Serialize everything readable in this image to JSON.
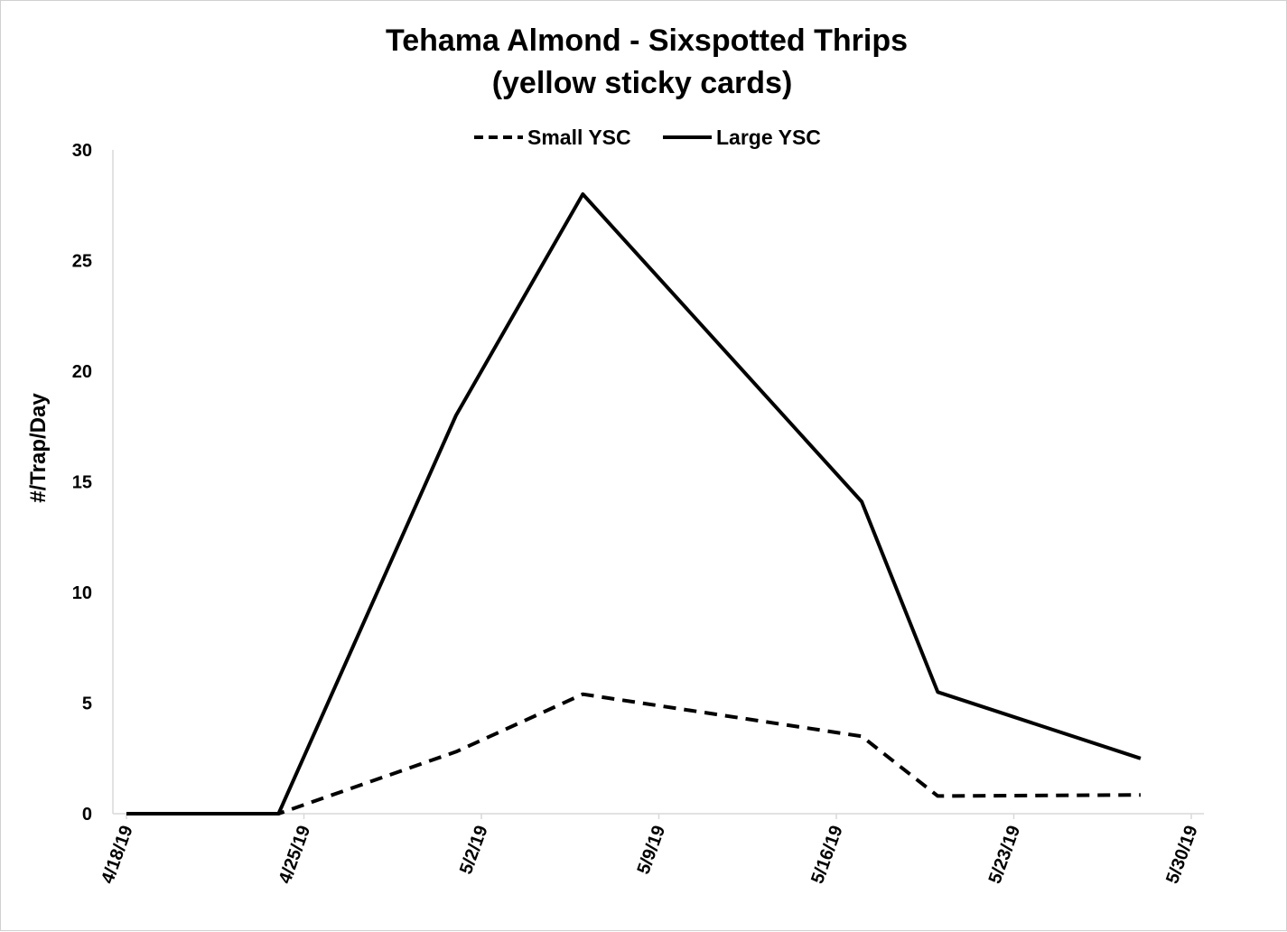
{
  "chart_data": {
    "type": "line",
    "title": "Tehama Almond - Sixspotted Thrips",
    "subtitle": "(yellow sticky cards)",
    "xlabel": "",
    "ylabel": "#/Trap/Day",
    "ylim": [
      0,
      30
    ],
    "y_ticks": [
      "0",
      "5",
      "10",
      "15",
      "20",
      "25",
      "30"
    ],
    "x_ticks": [
      "4/18/19",
      "4/25/19",
      "5/2/19",
      "5/9/19",
      "5/16/19",
      "5/23/19",
      "5/30/19"
    ],
    "xlim": [
      "2019-04-18",
      "2019-05-30"
    ],
    "grid": false,
    "legend_position": "top",
    "series": [
      {
        "name": "Small YSC",
        "style": "dashed",
        "color": "#000000",
        "points": [
          {
            "x": "2019-04-18",
            "y": 0
          },
          {
            "x": "2019-04-24",
            "y": 0
          },
          {
            "x": "2019-05-01",
            "y": 2.8
          },
          {
            "x": "2019-05-06",
            "y": 5.4
          },
          {
            "x": "2019-05-17",
            "y": 3.5
          },
          {
            "x": "2019-05-20",
            "y": 0.8
          },
          {
            "x": "2019-05-28",
            "y": 0.85
          }
        ]
      },
      {
        "name": "Large YSC",
        "style": "solid",
        "color": "#000000",
        "points": [
          {
            "x": "2019-04-18",
            "y": 0
          },
          {
            "x": "2019-04-24",
            "y": 0
          },
          {
            "x": "2019-05-01",
            "y": 18
          },
          {
            "x": "2019-05-06",
            "y": 28
          },
          {
            "x": "2019-05-17",
            "y": 14.1
          },
          {
            "x": "2019-05-20",
            "y": 5.5
          },
          {
            "x": "2019-05-28",
            "y": 2.5
          }
        ]
      }
    ]
  }
}
